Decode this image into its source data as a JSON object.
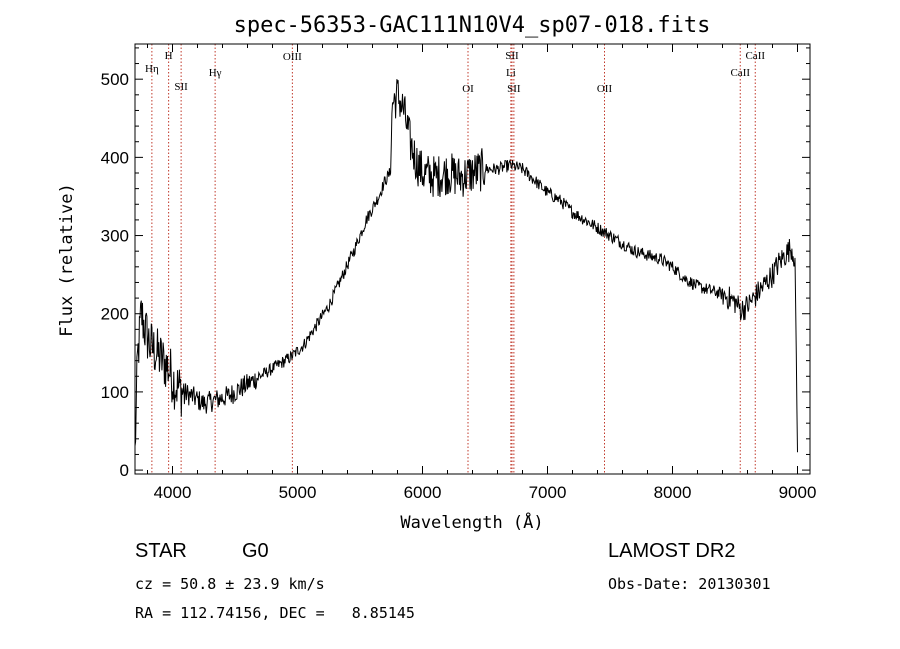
{
  "chart_data": {
    "type": "line",
    "title": "spec-56353-GAC111N10V4_sp07-018.fits",
    "xlabel": "Wavelength (Å)",
    "ylabel": "Flux (relative)",
    "xlim": [
      3700,
      9100
    ],
    "ylim": [
      -5,
      545
    ],
    "xticks": [
      4000,
      5000,
      6000,
      7000,
      8000,
      9000
    ],
    "yticks": [
      0,
      100,
      200,
      300,
      400,
      500
    ],
    "grid": false,
    "series": [
      {
        "color": "#000000",
        "anchors_x": [
          3700,
          3720,
          3750,
          3780,
          3820,
          3870,
          3920,
          3970,
          4020,
          4080,
          4150,
          4250,
          4350,
          4450,
          4550,
          4650,
          4750,
          4850,
          4950,
          5050,
          5150,
          5250,
          5350,
          5450,
          5550,
          5650,
          5700,
          5740,
          5760,
          5800,
          5850,
          5900,
          5950,
          6000,
          6100,
          6200,
          6300,
          6400,
          6500,
          6600,
          6700,
          6800,
          6900,
          7000,
          7100,
          7200,
          7300,
          7400,
          7500,
          7600,
          7700,
          7800,
          7900,
          8000,
          8100,
          8200,
          8300,
          8400,
          8500,
          8550,
          8600,
          8650,
          8700,
          8750,
          8800,
          8850,
          8900,
          8950,
          8980,
          9000
        ],
        "anchors_y": [
          20,
          140,
          200,
          180,
          160,
          150,
          140,
          130,
          110,
          100,
          95,
          85,
          90,
          95,
          105,
          115,
          125,
          135,
          145,
          160,
          185,
          210,
          245,
          280,
          320,
          350,
          370,
          380,
          470,
          480,
          460,
          420,
          395,
          380,
          375,
          380,
          375,
          380,
          385,
          385,
          390,
          385,
          370,
          355,
          345,
          330,
          320,
          310,
          300,
          290,
          280,
          275,
          270,
          260,
          245,
          235,
          230,
          225,
          215,
          205,
          210,
          220,
          230,
          240,
          250,
          265,
          275,
          285,
          270,
          20
        ]
      }
    ],
    "reference_lines": [
      {
        "name": "Hη",
        "x": 3835
      },
      {
        "name": "H",
        "x": 3969
      },
      {
        "name": "SII",
        "x": 4069
      },
      {
        "name": "Hγ",
        "x": 4341
      },
      {
        "name": "OIII",
        "x": 4959
      },
      {
        "name": "OI",
        "x": 6364
      },
      {
        "name": "SII",
        "x": 6716
      },
      {
        "name": "Li",
        "x": 6707
      },
      {
        "name": "SII",
        "x": 6731
      },
      {
        "name": "OII",
        "x": 7456
      },
      {
        "name": "CaII",
        "x": 8542
      },
      {
        "name": "CaII",
        "x": 8662
      }
    ],
    "reference_line_color": "#c0392b"
  },
  "info": {
    "class": "STAR",
    "subclass": "G0",
    "survey": "LAMOST DR2",
    "cz": "cz = 50.8 ± 23.9 km/s",
    "obs_date": "Obs-Date: 20130301",
    "coords": "RA = 112.74156, DEC =   8.85145"
  }
}
